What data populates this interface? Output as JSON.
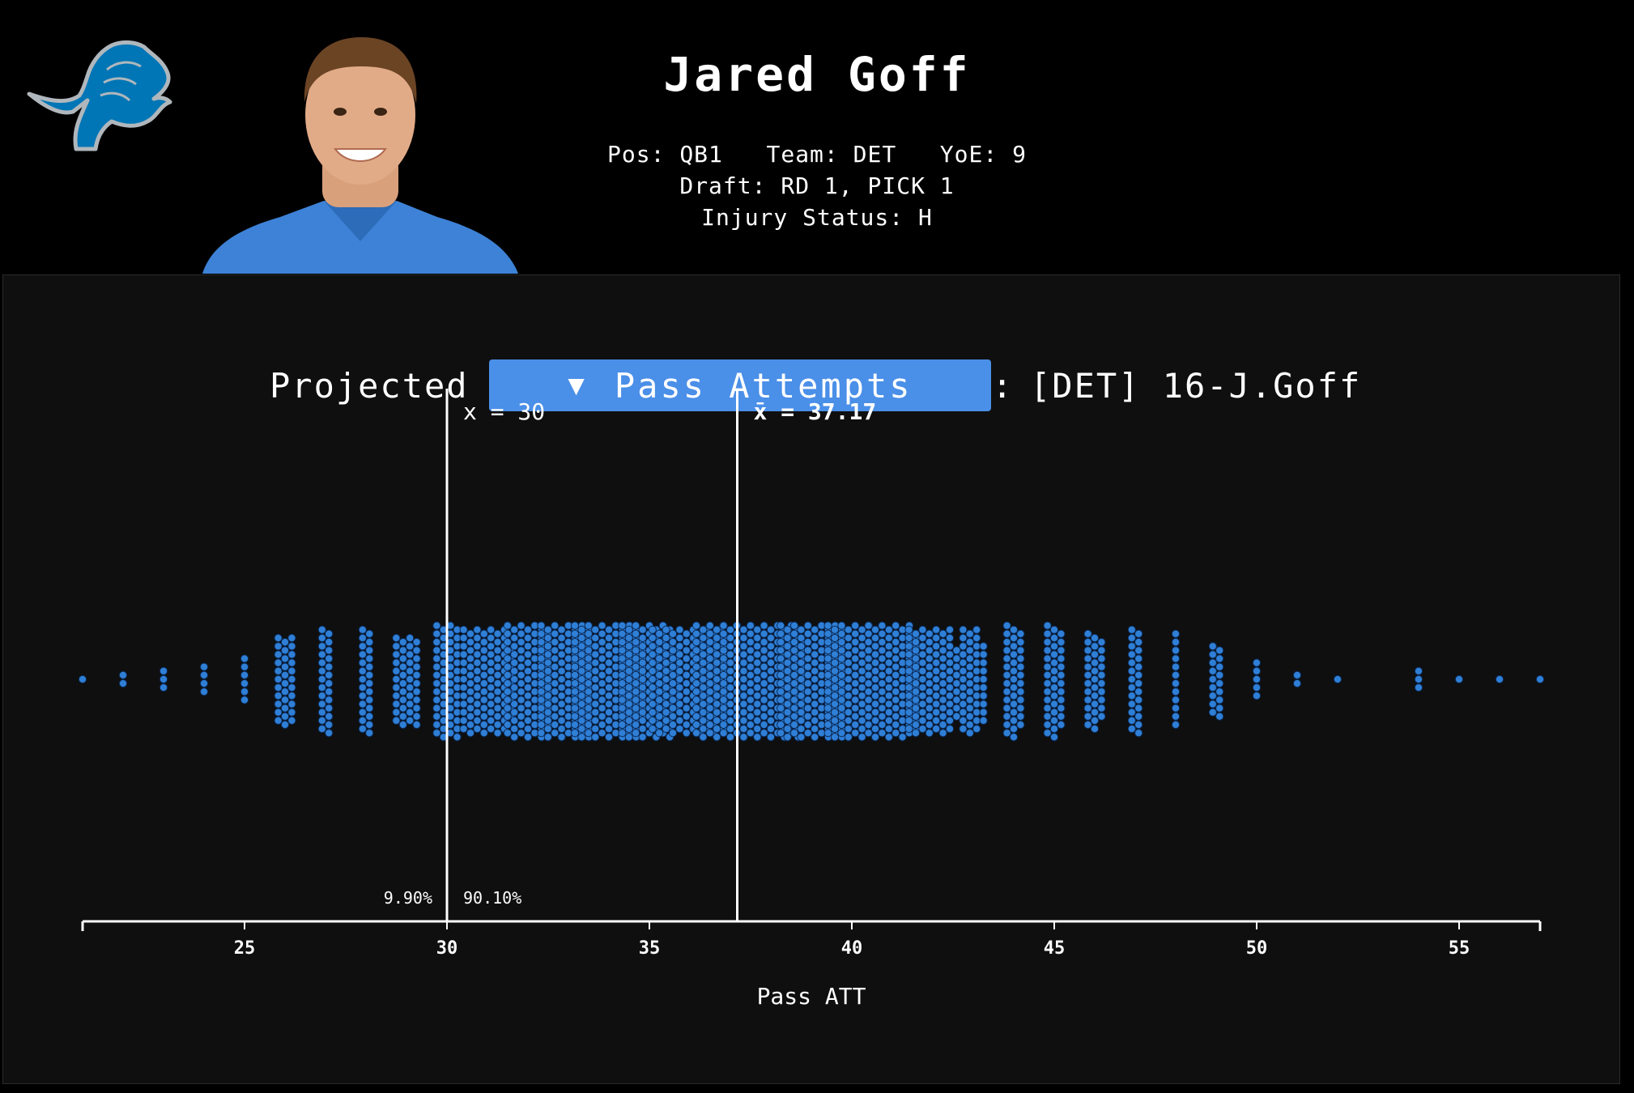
{
  "header": {
    "player_name": "Jared Goff",
    "pos_label": "Pos:",
    "pos_value": "QB1",
    "team_label": "Team:",
    "team_value": "DET",
    "yoe_label": "YoE:",
    "yoe_value": "9",
    "draft_label": "Draft:",
    "draft_value": "RD 1, PICK 1",
    "injury_label": "Injury Status:",
    "injury_value": "H"
  },
  "colors": {
    "background": "#000000",
    "panel": "#0f0f0f",
    "dropdown": "#4a8fe8",
    "dot_fill": "#2f7fd6",
    "dot_stroke": "#0c2a55",
    "lion_blue": "#0076B6",
    "lion_silver": "#B0B7BC"
  },
  "icons": {
    "team_logo": "lion-logo-icon",
    "dropdown_caret": "triangle-down-icon",
    "player_photo": "player-headshot"
  },
  "selector": {
    "prefix": "Projected",
    "selected_stat": "Pass Attempts",
    "caret": "▼",
    "separator": ":",
    "player_ref": "[DET] 16-J.Goff"
  },
  "chart_data": {
    "type": "beeswarm",
    "xlabel": "Pass ATT",
    "xlim": [
      21,
      57
    ],
    "xticks": [
      25,
      30,
      35,
      40,
      45,
      50,
      55
    ],
    "threshold": {
      "value": 30,
      "label": "x = 30",
      "pct_below": "9.90%",
      "pct_above": "90.10%"
    },
    "mean": {
      "value": 37.17,
      "label": "x̄ = 37.17"
    },
    "bins": [
      {
        "x": 21,
        "count": 1
      },
      {
        "x": 22,
        "count": 2
      },
      {
        "x": 23,
        "count": 3
      },
      {
        "x": 24,
        "count": 4
      },
      {
        "x": 25,
        "count": 6
      },
      {
        "x": 26,
        "count": 33
      },
      {
        "x": 27,
        "count": 26
      },
      {
        "x": 28,
        "count": 26
      },
      {
        "x": 29,
        "count": 44
      },
      {
        "x": 30,
        "count": 56
      },
      {
        "x": 31,
        "count": 100
      },
      {
        "x": 32,
        "count": 96
      },
      {
        "x": 33,
        "count": 121
      },
      {
        "x": 34,
        "count": 150
      },
      {
        "x": 35,
        "count": 120
      },
      {
        "x": 36,
        "count": 155
      },
      {
        "x": 37,
        "count": 150
      },
      {
        "x": 38,
        "count": 150
      },
      {
        "x": 39,
        "count": 140
      },
      {
        "x": 40,
        "count": 110
      },
      {
        "x": 41,
        "count": 110
      },
      {
        "x": 42,
        "count": 100
      },
      {
        "x": 43,
        "count": 49
      },
      {
        "x": 44,
        "count": 40
      },
      {
        "x": 45,
        "count": 40
      },
      {
        "x": 46,
        "count": 34
      },
      {
        "x": 47,
        "count": 26
      },
      {
        "x": 48,
        "count": 12
      },
      {
        "x": 49,
        "count": 18
      },
      {
        "x": 50,
        "count": 5
      },
      {
        "x": 51,
        "count": 2
      },
      {
        "x": 52,
        "count": 1
      },
      {
        "x": 54,
        "count": 3
      },
      {
        "x": 55,
        "count": 1
      },
      {
        "x": 56,
        "count": 1
      },
      {
        "x": 57,
        "count": 1
      }
    ]
  }
}
